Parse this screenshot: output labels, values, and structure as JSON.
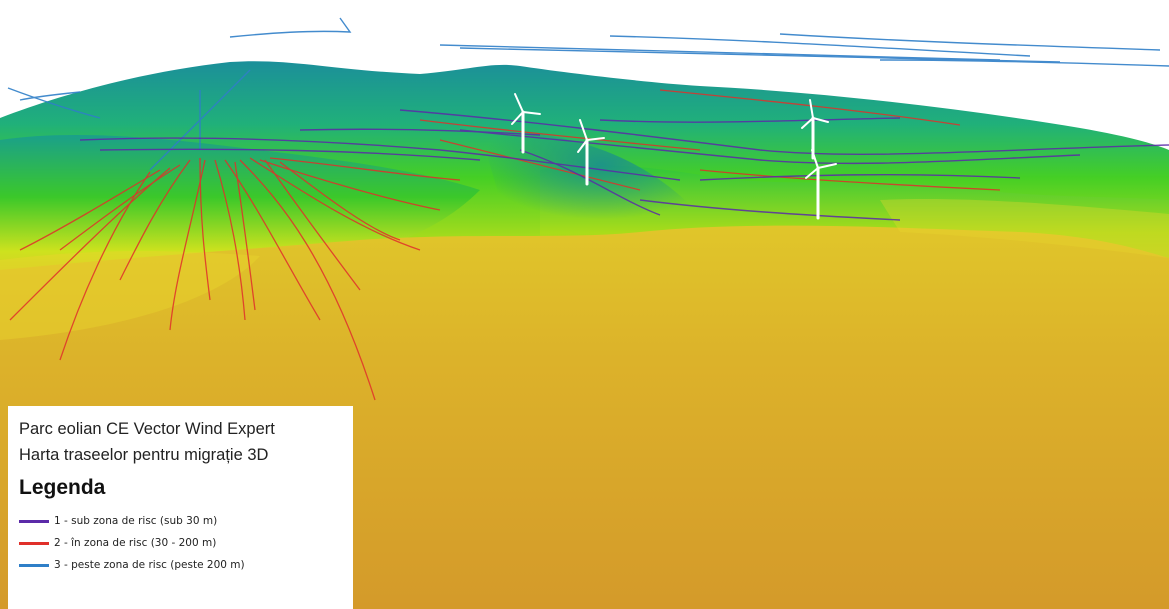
{
  "map": {
    "title_line1": "Parc eolian CE Vector Wind Expert",
    "title_line2": "Harta traseelor pentru migrație 3D",
    "legend_heading": "Legenda",
    "legend_items": [
      {
        "label": "1 - sub zona de risc (sub 30 m)",
        "color": "#5b2aa8"
      },
      {
        "label": "2 - în zona de risc (30 - 200 m)",
        "color": "#e0302a"
      },
      {
        "label": "3 - peste zona de risc (peste 200 m)",
        "color": "#2f7fc8"
      }
    ],
    "colors": {
      "sky": "#ffffff",
      "terrain_low": "#d6a12a",
      "terrain_mid": "#e6d21c",
      "terrain_green": "#3fcf1e",
      "terrain_high": "#1c9a98",
      "turbine": "#ffffff"
    },
    "turbine_count": 4
  }
}
